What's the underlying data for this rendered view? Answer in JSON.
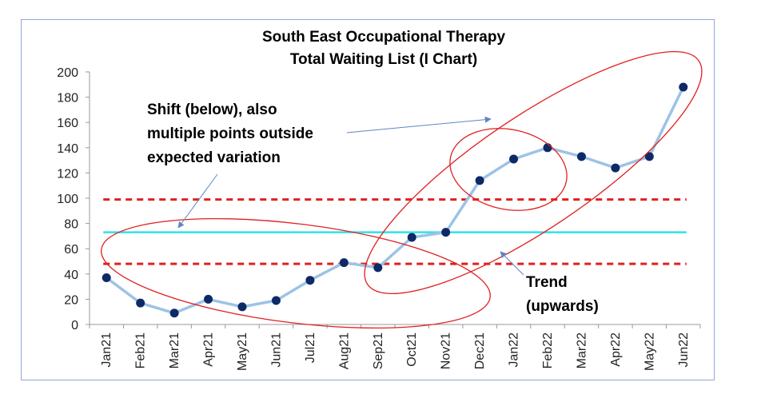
{
  "chart_data": {
    "type": "line",
    "title_lines": [
      "South East Occupational Therapy",
      "Total Waiting List (I Chart)"
    ],
    "categories": [
      "Jan21",
      "Feb21",
      "Mar21",
      "Apr21",
      "May21",
      "Jun21",
      "Jul21",
      "Aug21",
      "Sep21",
      "Oct21",
      "Nov21",
      "Dec21",
      "Jan22",
      "Feb22",
      "Mar22",
      "Apr22",
      "May22",
      "Jun22"
    ],
    "values": [
      37,
      17,
      9,
      20,
      14,
      19,
      35,
      49,
      45,
      69,
      73,
      114,
      131,
      140,
      133,
      124,
      133,
      188
    ],
    "ylim": [
      0,
      200
    ],
    "yticks": [
      0,
      20,
      40,
      60,
      80,
      100,
      120,
      140,
      160,
      180,
      200
    ],
    "mean": 73,
    "upper_limit": 99,
    "lower_limit": 48,
    "grid": false,
    "colors": {
      "line": "#9dc3e6",
      "point": "#0d2a66",
      "mean": "#33e0e8",
      "limits": "#e02020",
      "ellipse": "#e02020",
      "arrow": "#5b86c5",
      "frame": "#8eaadb"
    },
    "annotations": [
      {
        "id": "shift",
        "lines": [
          "Shift (below), also",
          "multiple points outside",
          "expected variation"
        ]
      },
      {
        "id": "trend",
        "lines": [
          "Trend",
          "(upwards)"
        ]
      }
    ]
  }
}
